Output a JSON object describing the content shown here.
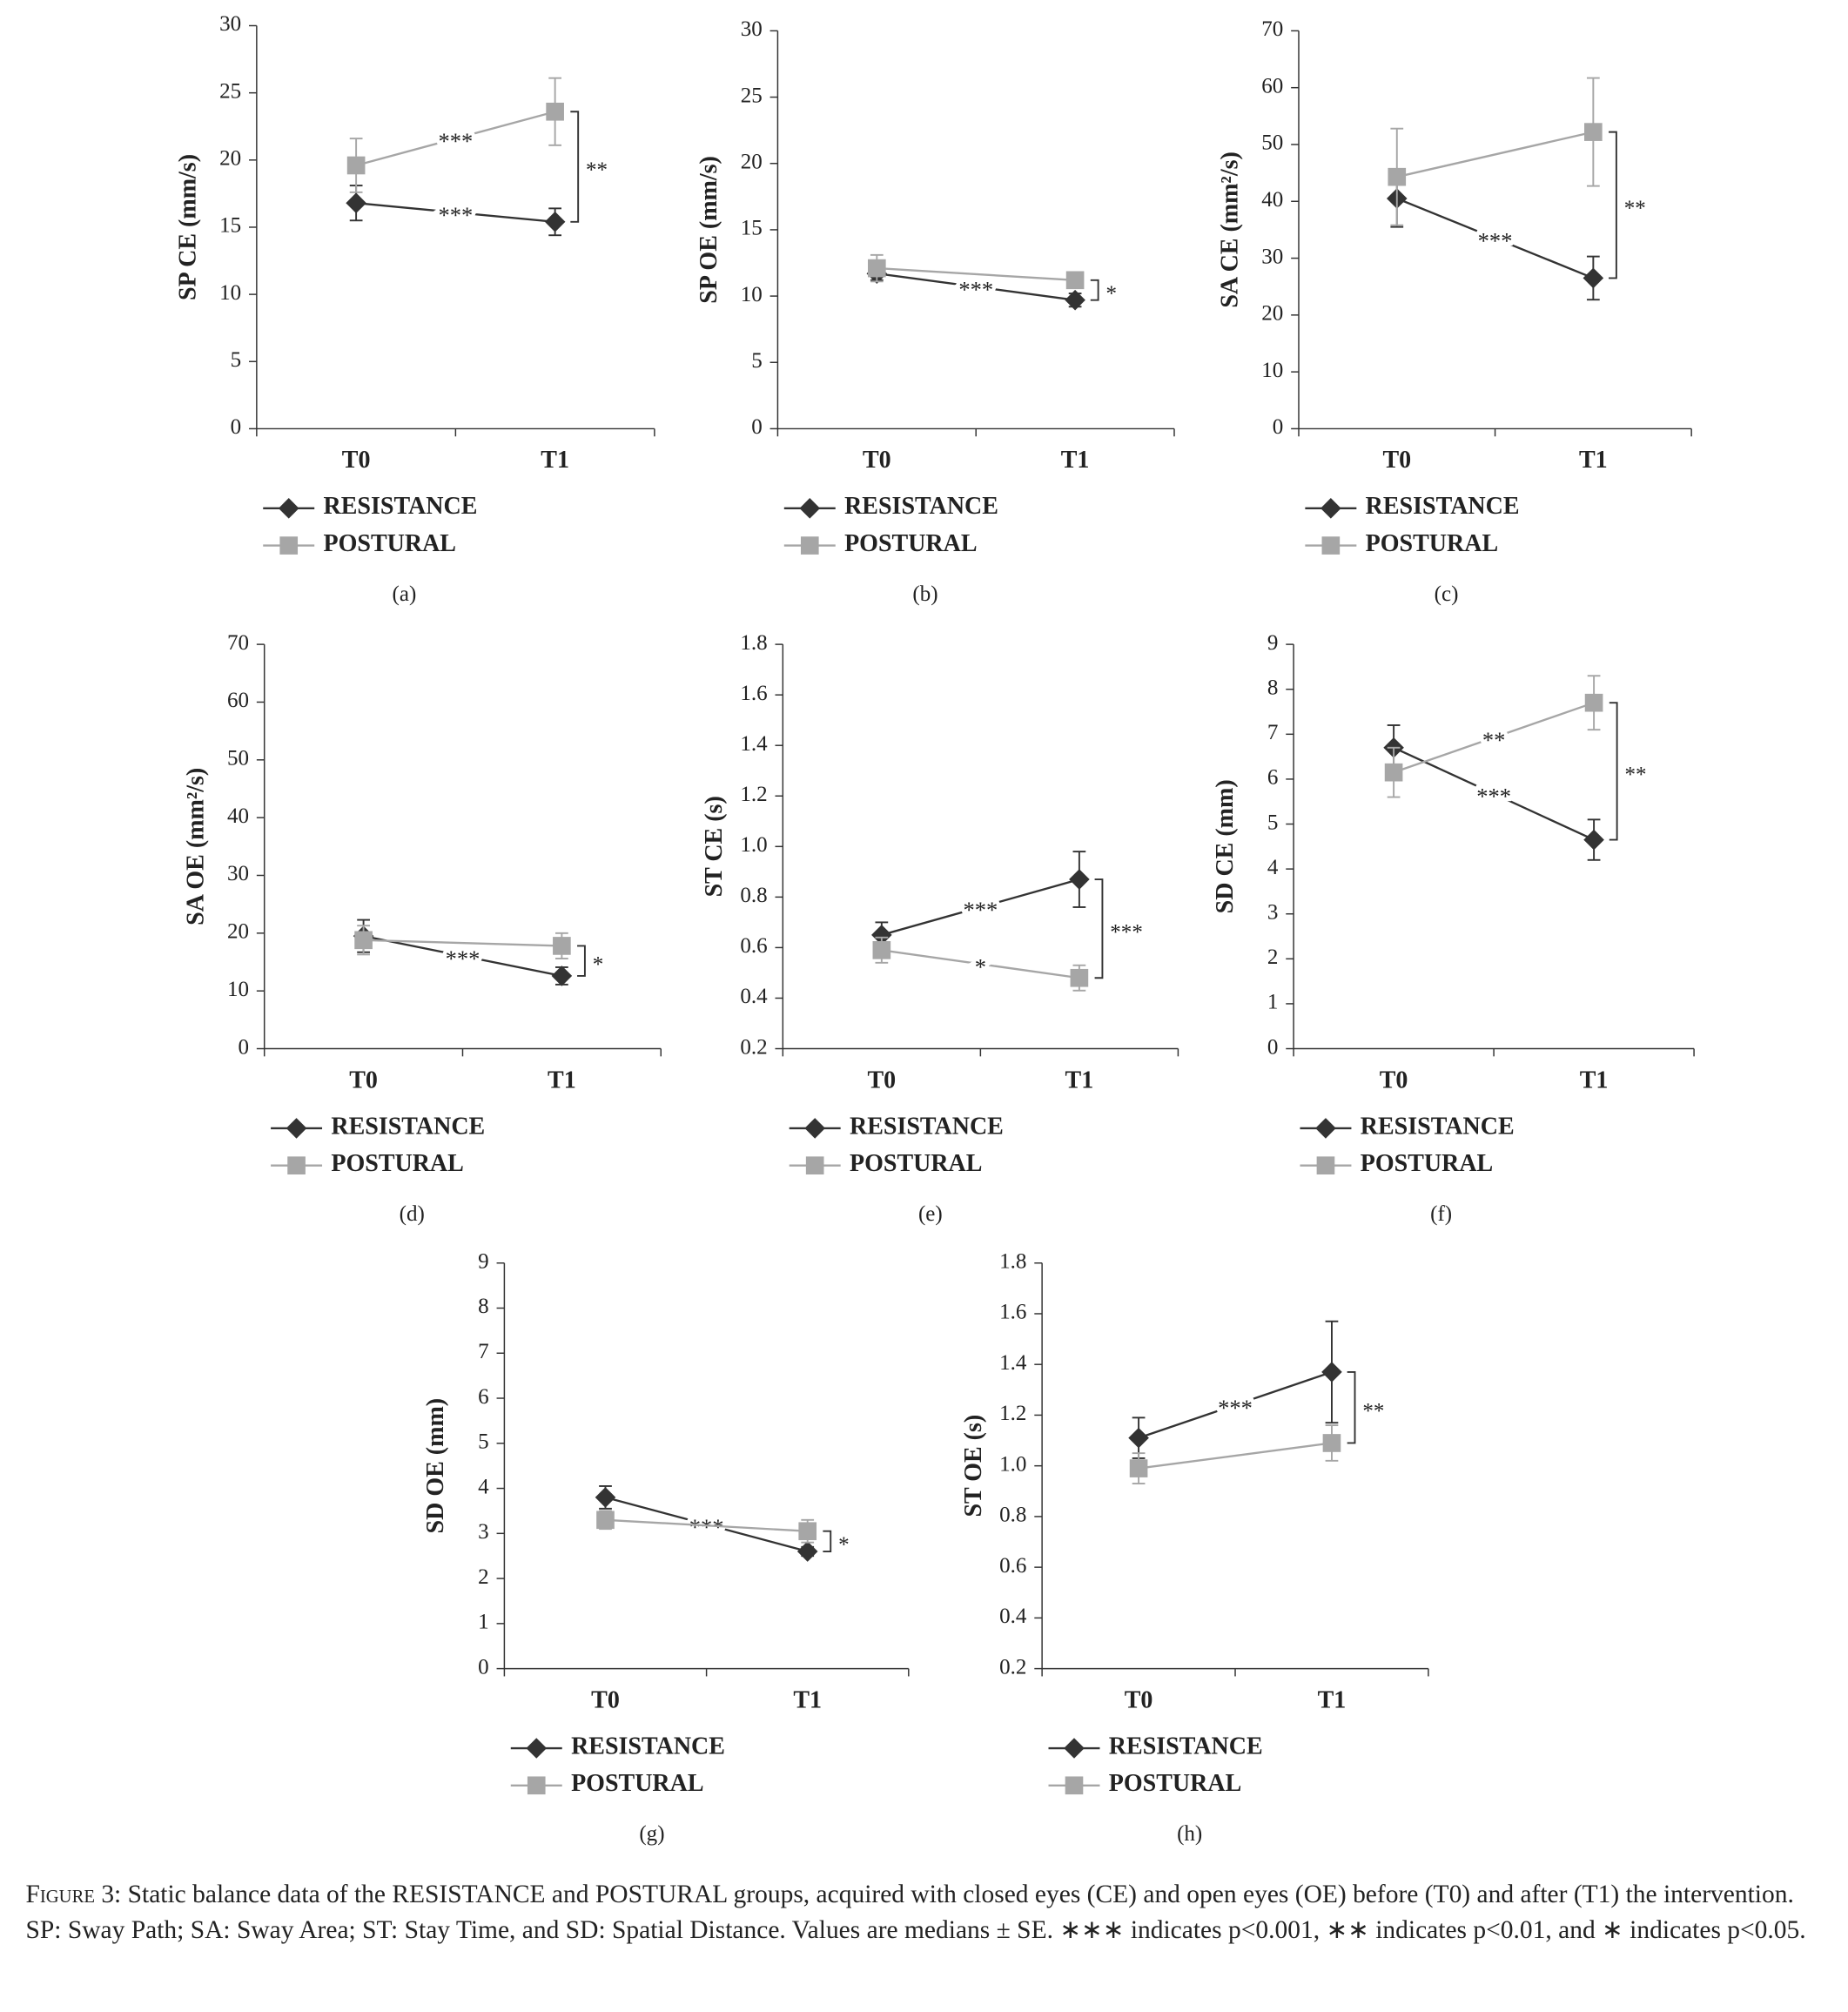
{
  "chart_data": [
    {
      "type": "line",
      "panel": "(a)",
      "ylabel": "SP CE (mm/s)",
      "categories": [
        "T0",
        "T1"
      ],
      "ylim": [
        0,
        30
      ],
      "yticks": [
        0,
        5,
        10,
        15,
        20,
        25,
        30
      ],
      "group_significance": "**",
      "series": [
        {
          "name": "RESISTANCE",
          "color": "#333333",
          "marker": "diamond",
          "values": [
            16.8,
            15.4
          ],
          "errors": [
            1.3,
            1.0
          ],
          "significance": "***"
        },
        {
          "name": "POSTURAL",
          "color": "#a6a6a6",
          "marker": "square",
          "values": [
            19.6,
            23.6
          ],
          "errors": [
            2.0,
            2.5
          ],
          "significance": "***"
        }
      ]
    },
    {
      "type": "line",
      "panel": "(b)",
      "ylabel": "SP OE (mm/s)",
      "categories": [
        "T0",
        "T1"
      ],
      "ylim": [
        0,
        30
      ],
      "yticks": [
        0,
        5,
        10,
        15,
        20,
        25,
        30
      ],
      "group_significance": "*",
      "series": [
        {
          "name": "RESISTANCE",
          "color": "#333333",
          "marker": "diamond",
          "values": [
            11.7,
            9.7
          ],
          "errors": [
            0.5,
            0.5
          ],
          "significance": "***"
        },
        {
          "name": "POSTURAL",
          "color": "#a6a6a6",
          "marker": "square",
          "values": [
            12.1,
            11.2
          ],
          "errors": [
            1.0,
            0.6
          ]
        }
      ]
    },
    {
      "type": "line",
      "panel": "(c)",
      "ylabel": "SA CE (mm²/s)",
      "categories": [
        "T0",
        "T1"
      ],
      "ylim": [
        0,
        70
      ],
      "yticks": [
        0,
        10,
        20,
        30,
        40,
        50,
        60,
        70
      ],
      "group_significance": "**",
      "series": [
        {
          "name": "RESISTANCE",
          "color": "#333333",
          "marker": "diamond",
          "values": [
            40.5,
            26.5
          ],
          "errors": [
            5,
            3.8
          ],
          "significance": "***"
        },
        {
          "name": "POSTURAL",
          "color": "#a6a6a6",
          "marker": "square",
          "values": [
            44.3,
            52.2
          ],
          "errors": [
            8.5,
            9.5
          ]
        }
      ]
    },
    {
      "type": "line",
      "panel": "(d)",
      "ylabel": "SA OE (mm²/s)",
      "categories": [
        "T0",
        "T1"
      ],
      "ylim": [
        0,
        70
      ],
      "yticks": [
        0,
        10,
        20,
        30,
        40,
        50,
        60,
        70
      ],
      "group_significance": "*",
      "series": [
        {
          "name": "RESISTANCE",
          "color": "#333333",
          "marker": "diamond",
          "values": [
            19.5,
            12.6
          ],
          "errors": [
            2.8,
            1.5
          ],
          "significance": "***"
        },
        {
          "name": "POSTURAL",
          "color": "#a6a6a6",
          "marker": "square",
          "values": [
            18.8,
            17.8
          ],
          "errors": [
            2.5,
            2.2
          ]
        }
      ]
    },
    {
      "type": "line",
      "panel": "(e)",
      "ylabel": "ST CE (s)",
      "categories": [
        "T0",
        "T1"
      ],
      "ylim": [
        0.2,
        1.8
      ],
      "yticks": [
        0.2,
        0.4,
        0.6,
        0.8,
        {
          "value": 1,
          "label": "1.0"
        },
        1.2,
        1.4,
        1.6,
        1.8
      ],
      "group_significance": "***",
      "series": [
        {
          "name": "RESISTANCE",
          "color": "#333333",
          "marker": "diamond",
          "values": [
            0.65,
            0.87
          ],
          "errors": [
            0.05,
            0.11
          ],
          "significance": "***"
        },
        {
          "name": "POSTURAL",
          "color": "#a6a6a6",
          "marker": "square",
          "values": [
            0.59,
            0.48
          ],
          "errors": [
            0.05,
            0.05
          ],
          "significance": "*"
        }
      ]
    },
    {
      "type": "line",
      "panel": "(f)",
      "ylabel": "SD CE (mm)",
      "categories": [
        "T0",
        "T1"
      ],
      "ylim": [
        0,
        9
      ],
      "yticks": [
        0,
        1,
        2,
        3,
        4,
        5,
        6,
        7,
        8,
        9
      ],
      "group_significance": "**",
      "series": [
        {
          "name": "RESISTANCE",
          "color": "#333333",
          "marker": "diamond",
          "values": [
            6.7,
            4.65
          ],
          "errors": [
            0.5,
            0.45
          ],
          "significance": "***"
        },
        {
          "name": "POSTURAL",
          "color": "#a6a6a6",
          "marker": "square",
          "values": [
            6.15,
            7.7
          ],
          "errors": [
            0.55,
            0.6
          ],
          "significance": "**"
        }
      ]
    },
    {
      "type": "line",
      "panel": "(g)",
      "ylabel": "SD OE (mm)",
      "categories": [
        "T0",
        "T1"
      ],
      "ylim": [
        0,
        9
      ],
      "yticks": [
        0,
        1,
        2,
        3,
        4,
        5,
        6,
        7,
        8,
        9
      ],
      "group_significance": "*",
      "series": [
        {
          "name": "RESISTANCE",
          "color": "#333333",
          "marker": "diamond",
          "values": [
            3.8,
            2.6
          ],
          "errors": [
            0.25,
            0.1
          ],
          "significance": "***"
        },
        {
          "name": "POSTURAL",
          "color": "#a6a6a6",
          "marker": "square",
          "values": [
            3.3,
            3.05
          ],
          "errors": [
            0.2,
            0.25
          ]
        }
      ]
    },
    {
      "type": "line",
      "panel": "(h)",
      "ylabel": "ST OE (s)",
      "categories": [
        "T0",
        "T1"
      ],
      "ylim": [
        0.2,
        1.8
      ],
      "yticks": [
        0.2,
        0.4,
        0.6,
        0.8,
        {
          "value": 1,
          "label": "1.0"
        },
        1.2,
        1.4,
        1.6,
        1.8
      ],
      "group_significance": "**",
      "series": [
        {
          "name": "RESISTANCE",
          "color": "#333333",
          "marker": "diamond",
          "values": [
            1.11,
            1.37
          ],
          "errors": [
            0.08,
            0.2
          ],
          "significance": "***"
        },
        {
          "name": "POSTURAL",
          "color": "#a6a6a6",
          "marker": "square",
          "values": [
            0.99,
            1.09
          ],
          "errors": [
            0.06,
            0.07
          ]
        }
      ]
    }
  ],
  "caption_label": "Figure 3:",
  "caption": "Static balance data of the RESISTANCE and POSTURAL groups, acquired with closed eyes (CE) and open eyes (OE) before (T0) and after (T1) the intervention. SP: Sway Path; SA: Sway Area; ST: Stay Time, and SD: Spatial Distance. Values are medians ± SE. ∗∗∗ indicates p<0.001, ∗∗ indicates p<0.01, and ∗ indicates p<0.05."
}
